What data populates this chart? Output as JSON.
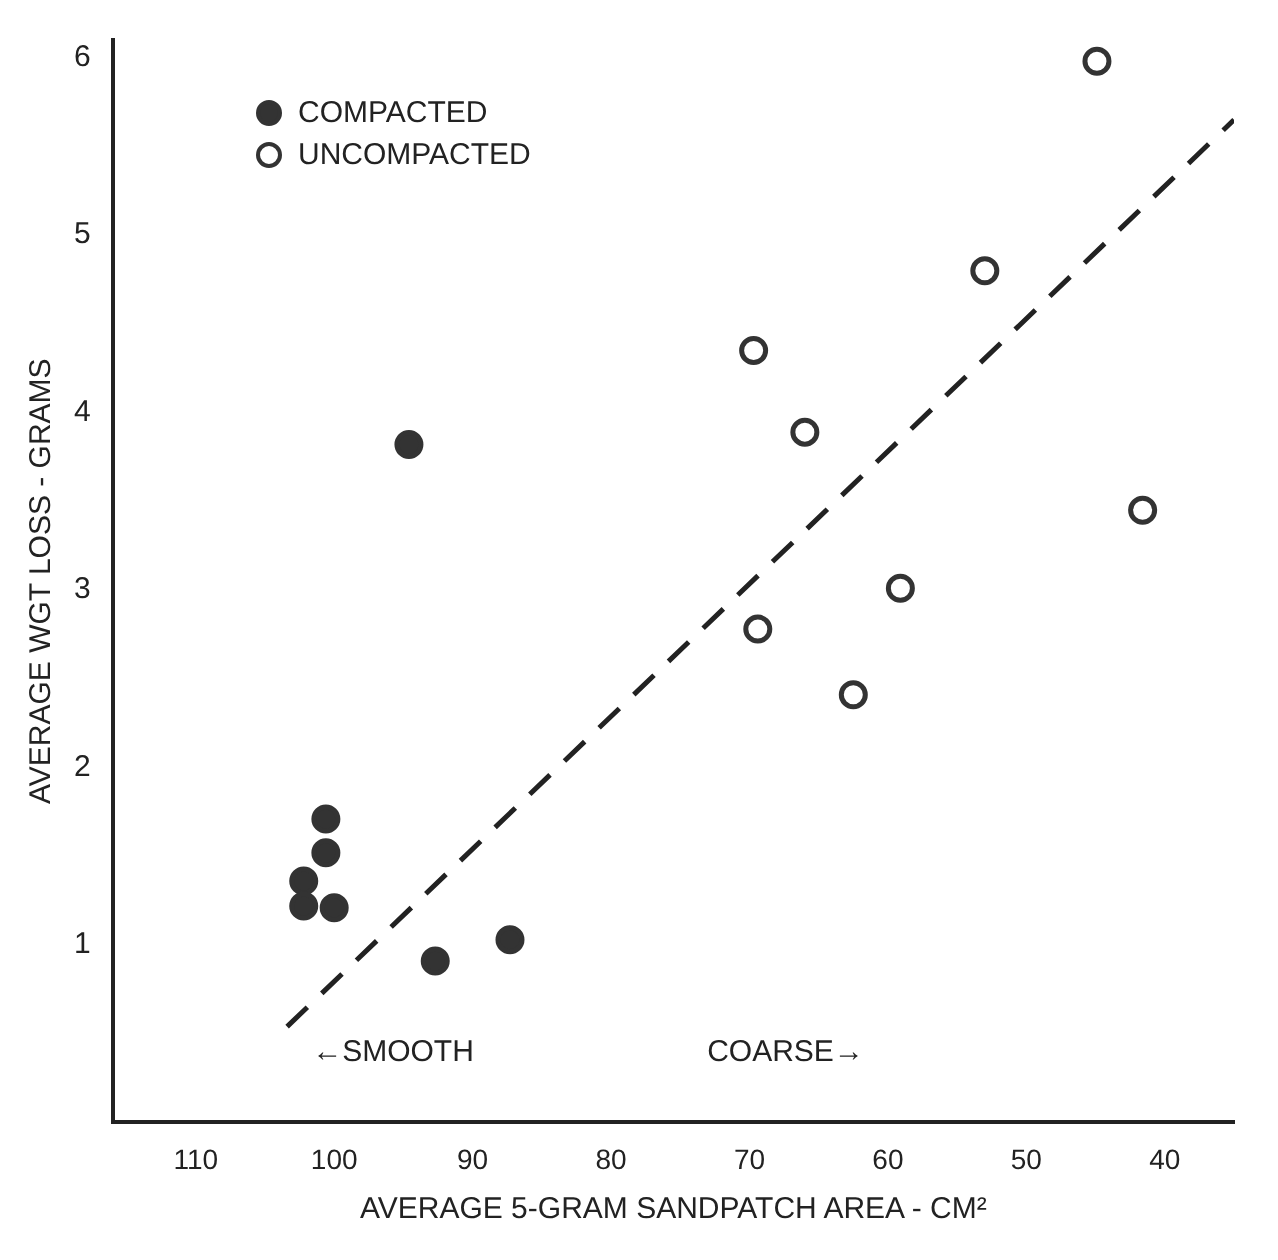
{
  "chart_data": {
    "type": "scatter",
    "xlabel": "AVERAGE 5-GRAM SANDPATCH AREA - CM²",
    "ylabel": "AVERAGE WGT LOSS - GRAMS",
    "xlim": [
      116,
      35
    ],
    "xticks": [
      110,
      100,
      90,
      80,
      70,
      60,
      50,
      40
    ],
    "ylim": [
      0,
      6.1
    ],
    "yticks": [
      1,
      2,
      3,
      4,
      5,
      6
    ],
    "grid": false,
    "legend": "top left",
    "marker": "circle",
    "annotations": [
      "←SMOOTH",
      "COARSE→"
    ],
    "series": [
      {
        "name": "COMPACTED",
        "color": "#333333",
        "x": [
          100.6,
          100.6,
          102.2,
          102.2,
          100,
          92.7,
          87.3,
          94.6
        ],
        "values": [
          1.71,
          1.52,
          1.36,
          1.22,
          1.21,
          0.91,
          1.03,
          3.82
        ]
      },
      {
        "name": "UNCOMPACTED",
        "color": "#333333",
        "x": [
          44.9,
          53,
          69.7,
          66,
          41.6,
          59.1,
          69.4,
          62.5
        ],
        "values": [
          5.98,
          4.8,
          4.35,
          3.89,
          3.45,
          3.01,
          2.78,
          2.41
        ]
      },
      {
        "type": "line",
        "color": "#222222",
        "line_style": "dashed",
        "marker": "none",
        "x": [
          103.4,
          35
        ],
        "values": [
          0.54,
          5.65
        ]
      }
    ]
  }
}
